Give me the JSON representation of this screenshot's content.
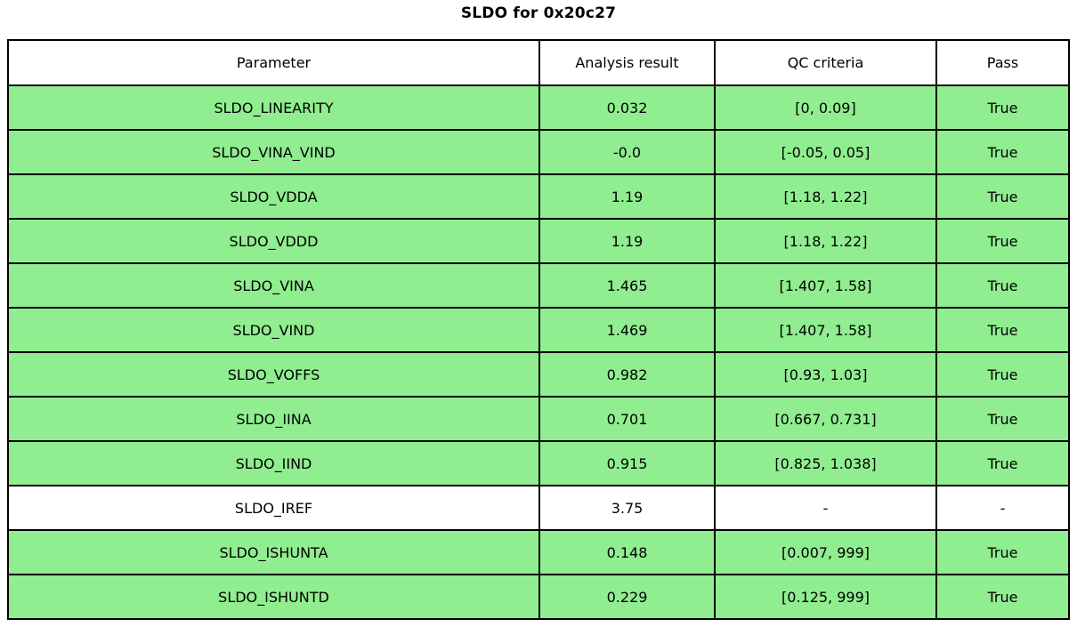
{
  "colors": {
    "row_green": "#90EE90",
    "row_white": "#FFFFFF",
    "border": "#000000",
    "text": "#000000",
    "page_background": "#FFFFFF"
  },
  "chart_data": {
    "type": "table",
    "title": "SLDO for 0x20c27",
    "legend_position": "none",
    "grid": true,
    "columns": [
      "Parameter",
      "Analysis result",
      "QC criteria",
      "Pass"
    ],
    "rows": [
      {
        "parameter": "SLDO_LINEARITY",
        "analysis_result": "0.032",
        "qc_criteria": "[0, 0.09]",
        "pass": "True",
        "highlight": true
      },
      {
        "parameter": "SLDO_VINA_VIND",
        "analysis_result": "-0.0",
        "qc_criteria": "[-0.05, 0.05]",
        "pass": "True",
        "highlight": true
      },
      {
        "parameter": "SLDO_VDDA",
        "analysis_result": "1.19",
        "qc_criteria": "[1.18, 1.22]",
        "pass": "True",
        "highlight": true
      },
      {
        "parameter": "SLDO_VDDD",
        "analysis_result": "1.19",
        "qc_criteria": "[1.18, 1.22]",
        "pass": "True",
        "highlight": true
      },
      {
        "parameter": "SLDO_VINA",
        "analysis_result": "1.465",
        "qc_criteria": "[1.407, 1.58]",
        "pass": "True",
        "highlight": true
      },
      {
        "parameter": "SLDO_VIND",
        "analysis_result": "1.469",
        "qc_criteria": "[1.407, 1.58]",
        "pass": "True",
        "highlight": true
      },
      {
        "parameter": "SLDO_VOFFS",
        "analysis_result": "0.982",
        "qc_criteria": "[0.93, 1.03]",
        "pass": "True",
        "highlight": true
      },
      {
        "parameter": "SLDO_IINA",
        "analysis_result": "0.701",
        "qc_criteria": "[0.667, 0.731]",
        "pass": "True",
        "highlight": true
      },
      {
        "parameter": "SLDO_IIND",
        "analysis_result": "0.915",
        "qc_criteria": "[0.825, 1.038]",
        "pass": "True",
        "highlight": true
      },
      {
        "parameter": "SLDO_IREF",
        "analysis_result": "3.75",
        "qc_criteria": "-",
        "pass": "-",
        "highlight": false
      },
      {
        "parameter": "SLDO_ISHUNTA",
        "analysis_result": "0.148",
        "qc_criteria": "[0.007, 999]",
        "pass": "True",
        "highlight": true
      },
      {
        "parameter": "SLDO_ISHUNTD",
        "analysis_result": "0.229",
        "qc_criteria": "[0.125, 999]",
        "pass": "True",
        "highlight": true
      }
    ]
  }
}
